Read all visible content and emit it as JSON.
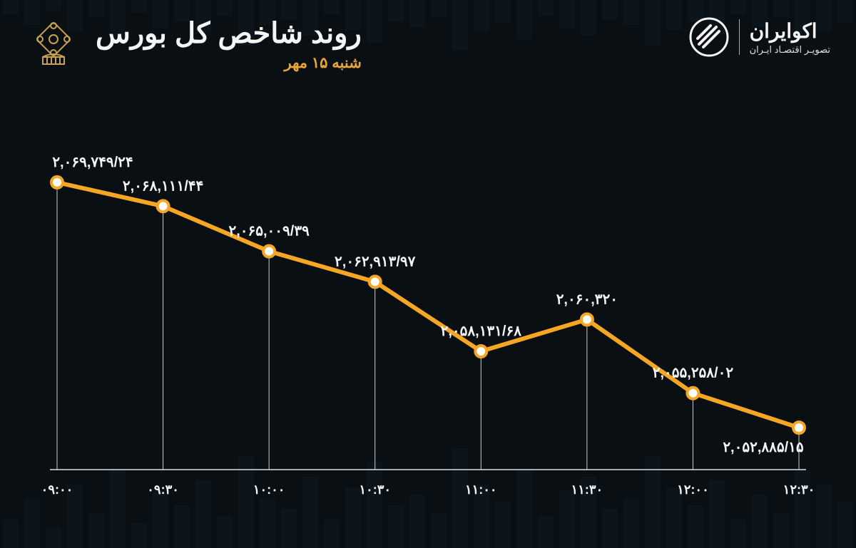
{
  "header": {
    "title": "روند شاخص کل بورس",
    "subtitle": "شنبه ۱۵ مهر",
    "subtitle_color": "#e8a636",
    "brand_name": "اکوایران",
    "brand_tagline": "تصویـر اقتصـاد ایـران"
  },
  "chart": {
    "type": "line",
    "line_color": "#f5a623",
    "point_fill": "#ffffff",
    "point_stroke": "#f5a623",
    "background_color": "#0a0f14",
    "axis_color": "#dddddd",
    "gridline_color": "#cccccc",
    "text_color": "#f5f5f5",
    "line_width": 6,
    "point_radius": 8,
    "label_fontsize": 20,
    "xlabel_fontsize": 18,
    "x_categories": [
      "۰۹:۰۰",
      "۰۹:۳۰",
      "۱۰:۰۰",
      "۱۰:۳۰",
      "۱۱:۰۰",
      "۱۱:۳۰",
      "۱۲:۰۰",
      "۱۲:۳۰"
    ],
    "y_values": [
      2069749.24,
      2068111.44,
      2065009.39,
      2062913.97,
      2058131.68,
      2060320,
      2055258.02,
      2052885.15
    ],
    "y_labels": [
      "۲,۰۶۹,۷۴۹/۲۴",
      "۲,۰۶۸,۱۱۱/۴۴",
      "۲,۰۶۵,۰۰۹/۳۹",
      "۲,۰۶۲,۹۱۳/۹۷",
      "۲,۰۵۸,۱۳۱/۶۸",
      "۲,۰۶۰,۳۲۰",
      "۲,۰۵۵,۲۵۸/۰۲",
      "۲,۰۵۲,۸۸۵/۱۵"
    ],
    "ylim": [
      2050000,
      2072000
    ]
  },
  "bg_bars": {
    "heights": [
      40,
      70,
      30,
      90,
      50,
      110,
      35,
      80,
      60,
      95,
      45,
      130,
      70,
      55,
      100,
      40,
      85,
      120,
      60,
      75,
      50,
      140,
      90,
      65,
      110,
      45,
      80,
      100,
      55,
      70,
      130,
      85,
      60,
      95,
      40,
      75,
      50,
      110,
      90,
      65
    ]
  }
}
